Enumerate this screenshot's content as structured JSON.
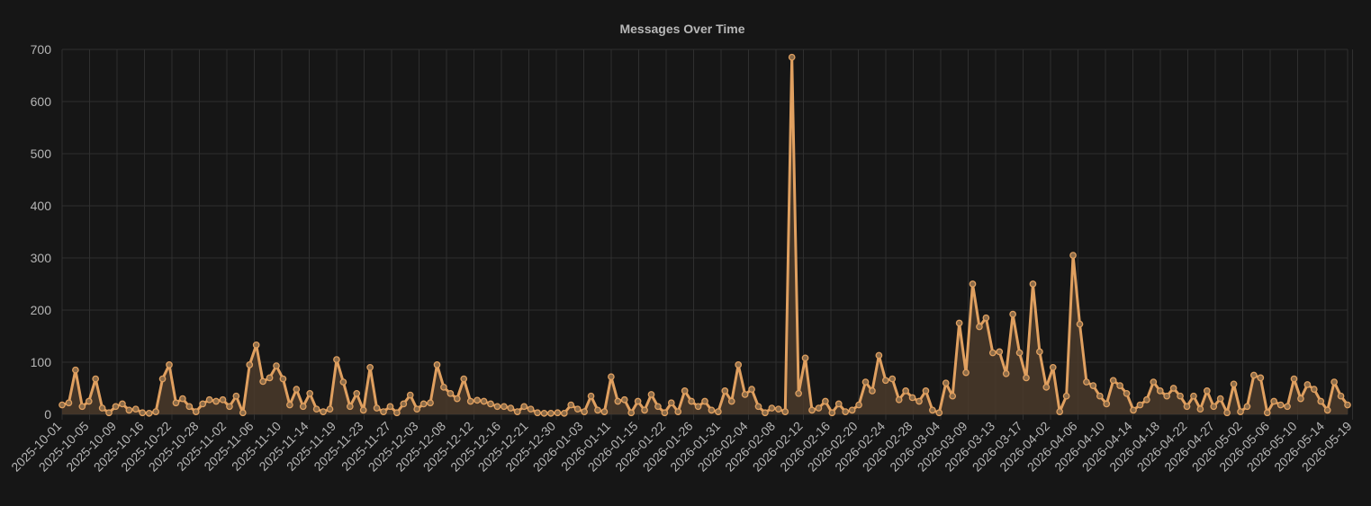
{
  "colors": {
    "background": "#161616",
    "line": "#e0a060",
    "area": "#4a3a2a",
    "grid": "#2f2f2f",
    "text": "#b5b5b5"
  },
  "chart_data": {
    "type": "line",
    "title": "Messages Over Time",
    "xlabel": "",
    "ylabel": "",
    "ylim": [
      0,
      700
    ],
    "yticks": [
      0,
      100,
      200,
      300,
      400,
      500,
      600,
      700
    ],
    "grid": true,
    "area_fill": true,
    "markers": true,
    "x_tick_labels": [
      "2025-10-01",
      "2025-10-05",
      "2025-10-09",
      "2025-10-16",
      "2025-10-22",
      "2025-10-28",
      "2025-11-02",
      "2025-11-06",
      "2025-11-10",
      "2025-11-14",
      "2025-11-19",
      "2025-11-23",
      "2025-11-27",
      "2025-12-03",
      "2025-12-08",
      "2025-12-12",
      "2025-12-16",
      "2025-12-21",
      "2025-12-30",
      "2026-01-03",
      "2026-01-11",
      "2026-01-15",
      "2026-01-22",
      "2026-01-26",
      "2026-01-31",
      "2026-02-04",
      "2026-02-08",
      "2026-02-12",
      "2026-02-16",
      "2026-02-20",
      "2026-02-24",
      "2026-02-28",
      "2026-03-04",
      "2026-03-09",
      "2026-03-13",
      "2026-03-17",
      "2026-04-02",
      "2026-04-06",
      "2026-04-10",
      "2026-04-14",
      "2026-04-18",
      "2026-04-22",
      "2026-04-27",
      "2026-05-02",
      "2026-05-06",
      "2026-05-10",
      "2026-05-14",
      "2026-05-19"
    ],
    "series": [
      {
        "values": [
          18,
          22,
          85,
          15,
          25,
          68,
          12,
          3,
          15,
          20,
          8,
          10,
          3,
          2,
          5,
          68,
          95,
          22,
          30,
          15,
          5,
          20,
          28,
          25,
          28,
          15,
          35,
          3,
          95,
          133,
          63,
          70,
          93,
          68,
          18,
          48,
          15,
          40,
          10,
          5,
          10,
          105,
          62,
          15,
          40,
          8,
          90,
          12,
          5,
          15,
          3,
          20,
          37,
          10,
          20,
          22,
          95,
          52,
          40,
          30,
          68,
          25,
          27,
          25,
          20,
          15,
          15,
          12,
          5,
          15,
          10,
          3,
          2,
          2,
          3,
          2,
          18,
          10,
          5,
          35,
          8,
          5,
          72,
          25,
          28,
          3,
          25,
          8,
          38,
          15,
          3,
          22,
          5,
          45,
          25,
          15,
          25,
          8,
          5,
          45,
          25,
          95,
          38,
          48,
          15,
          3,
          12,
          10,
          5,
          685,
          40,
          108,
          8,
          12,
          25,
          3,
          20,
          5,
          8,
          18,
          62,
          45,
          113,
          65,
          68,
          28,
          45,
          32,
          25,
          45,
          8,
          3,
          60,
          35,
          175,
          80,
          250,
          168,
          185,
          118,
          120,
          78,
          192,
          118,
          70,
          250,
          120,
          52,
          90,
          5,
          35,
          305,
          173,
          62,
          55,
          35,
          20,
          65,
          55,
          40,
          8,
          18,
          28,
          62,
          45,
          35,
          50,
          35,
          15,
          35,
          10,
          45,
          15,
          30,
          3,
          58,
          5,
          15,
          75,
          70,
          3,
          25,
          18,
          15,
          68,
          30,
          57,
          48,
          25,
          8,
          62,
          35,
          18
        ]
      }
    ]
  }
}
